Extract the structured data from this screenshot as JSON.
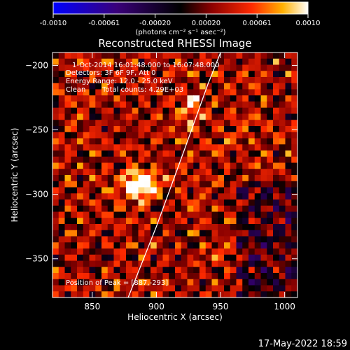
{
  "colorbar": {
    "ticks": [
      "-0.0010",
      "-0.00061",
      "-0.00020",
      "0.00020",
      "0.00061",
      "0.0010"
    ],
    "unit_label": "(photons cm⁻² s⁻¹ asec⁻²)"
  },
  "chart_data": {
    "type": "heatmap",
    "title": "Reconstructed RHESSI Image",
    "xlabel": "Heliocentric X (arcsec)",
    "ylabel": "Heliocentric Y (arcsec)",
    "xlim": [
      819,
      1010
    ],
    "ylim": [
      -380,
      -190
    ],
    "xticks": [
      850,
      900,
      950,
      1000
    ],
    "yticks": [
      -200,
      -250,
      -300,
      -350
    ],
    "colorscale": {
      "min": -0.001,
      "max": 0.001,
      "name": "hot-with-blue-negative"
    },
    "sources": [
      {
        "x": 887,
        "y": -293,
        "peak": true
      },
      {
        "x": 927,
        "y": -233,
        "peak": false
      }
    ],
    "limb_contour": [
      [
        878,
        -380
      ],
      [
        900,
        -325
      ],
      [
        922,
        -265
      ],
      [
        940,
        -215
      ],
      [
        950,
        -190
      ]
    ],
    "annotations": {
      "time": "1-Oct-2014 16:01:48.000 to 16:07:48.000",
      "detectors": "Detectors: 3F 6F 9F, Att 0",
      "energy": "Energy Range: 12.0 - 25.0 keV",
      "algorithm": "Clean",
      "counts": "Total counts: 4.29E+03",
      "peak": "Position of Peak = [887,-293]"
    }
  },
  "footer": {
    "timestamp": "17-May-2022 18:59"
  },
  "colors": {
    "background": "#000000",
    "foreground": "#ffffff"
  }
}
